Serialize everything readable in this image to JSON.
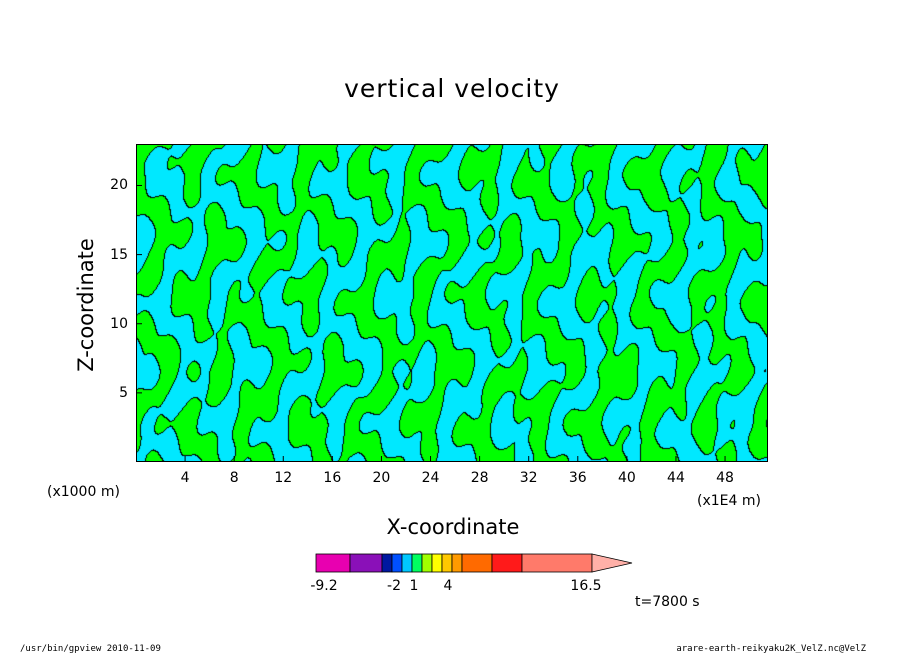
{
  "chart_data": {
    "type": "heatmap",
    "title": "vertical velocity",
    "xlabel": "X-coordinate",
    "ylabel": "Z-coordinate",
    "x_unit": "(x1E4 m)",
    "y_unit": "(x1000 m)",
    "xlim": [
      0,
      51.5
    ],
    "ylim": [
      0,
      23
    ],
    "x_ticks": [
      "4",
      "8",
      "12",
      "16",
      "20",
      "24",
      "28",
      "32",
      "36",
      "40",
      "44",
      "48"
    ],
    "y_ticks": [
      "5",
      "10",
      "15",
      "20"
    ],
    "grid": false,
    "colors": {
      "positive_band": "#00ff00",
      "negative_band": "#00e8ff",
      "contour_line": "#000000"
    },
    "colorbar": {
      "min_label": "-9.2",
      "max_label": "16.5",
      "tick_labels": [
        "-9.2",
        "-2",
        "1",
        "4",
        "16.5"
      ],
      "colors": [
        "#e800b0",
        "#8a10b8",
        "#0018a0",
        "#0050ff",
        "#00c8ff",
        "#00ff60",
        "#a0ff00",
        "#ffff00",
        "#ffc800",
        "#ff9a00",
        "#ff6a00",
        "#ff1a1a",
        "#ff7a6a",
        "#ffb0a8"
      ]
    },
    "time_label": "t=7800 s"
  },
  "footer": {
    "left": "/usr/bin/gpview   2010-11-09",
    "right": "arare-earth-reikyaku2K_VelZ.nc@VelZ"
  }
}
